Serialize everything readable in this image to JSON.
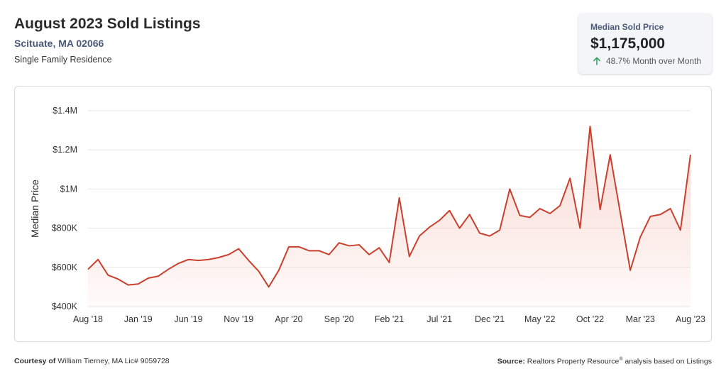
{
  "header": {
    "title": "August 2023 Sold Listings",
    "location": "Scituate, MA 02066",
    "property_type": "Single Family Residence"
  },
  "stat": {
    "label": "Median Sold Price",
    "value": "$1,175,000",
    "change": "48.7% Month over Month",
    "change_direction": "up",
    "arrow_color": "#3aa35a"
  },
  "footer": {
    "courtesy_label": "Courtesy of",
    "courtesy_text": "William Tierney, MA Lic# 9059728",
    "source_label": "Source:",
    "source_text_1": "Realtors Property Resource",
    "source_mark": "®",
    "source_text_2": " analysis based on Listings"
  },
  "chart_data": {
    "type": "area",
    "ylabel": "Median Price",
    "xlabel": "",
    "ylim": [
      400000,
      1400000
    ],
    "yticks": [
      400000,
      600000,
      800000,
      1000000,
      1200000,
      1400000
    ],
    "ytick_labels": [
      "$400K",
      "$600K",
      "$800K",
      "$1M",
      "$1.2M",
      "$1.4M"
    ],
    "xtick_labels": [
      "Aug '18",
      "Jan '19",
      "Jun '19",
      "Nov '19",
      "Apr '20",
      "Sep '20",
      "Feb '21",
      "Jul '21",
      "Dec '21",
      "May '22",
      "Oct '22",
      "Mar '23",
      "Aug '23"
    ],
    "xtick_indices": [
      0,
      5,
      10,
      15,
      20,
      25,
      30,
      35,
      40,
      45,
      50,
      55,
      60
    ],
    "grid": true,
    "line_color": "#c9402e",
    "fill_color": "#f6c9c0",
    "series": [
      {
        "values": [
          590000,
          640000,
          560000,
          540000,
          510000,
          515000,
          545000,
          555000,
          590000,
          620000,
          640000,
          635000,
          640000,
          650000,
          665000,
          695000,
          635000,
          580000,
          500000,
          585000,
          705000,
          705000,
          685000,
          685000,
          665000,
          725000,
          710000,
          715000,
          665000,
          700000,
          625000,
          955000,
          655000,
          760000,
          805000,
          840000,
          890000,
          800000,
          870000,
          775000,
          760000,
          790000,
          1000000,
          865000,
          855000,
          900000,
          875000,
          915000,
          1055000,
          800000,
          1320000,
          895000,
          1175000,
          880000,
          585000,
          755000,
          860000,
          870000,
          900000,
          790000,
          1175000
        ]
      }
    ]
  }
}
